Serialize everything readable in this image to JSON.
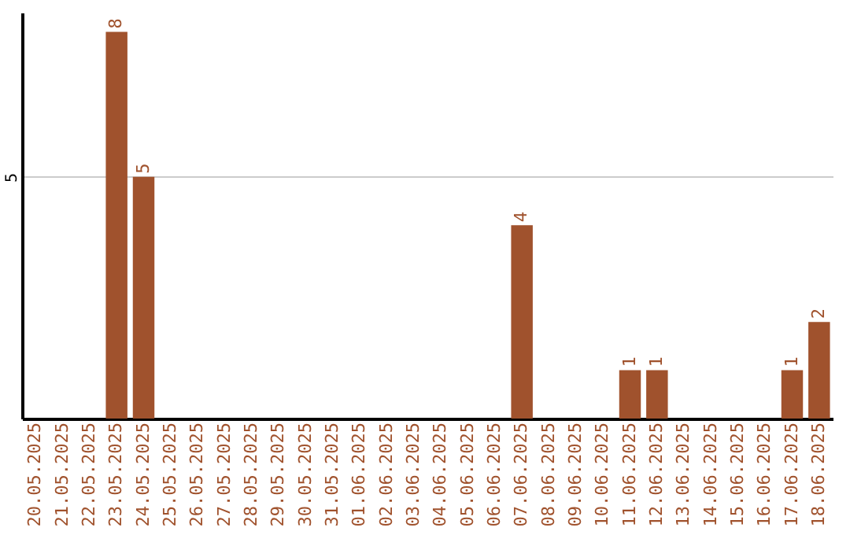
{
  "chart_data": {
    "type": "bar",
    "categories": [
      "20.05.2025",
      "21.05.2025",
      "22.05.2025",
      "23.05.2025",
      "24.05.2025",
      "25.05.2025",
      "26.05.2025",
      "27.05.2025",
      "28.05.2025",
      "29.05.2025",
      "30.05.2025",
      "31.05.2025",
      "01.06.2025",
      "02.06.2025",
      "03.06.2025",
      "04.06.2025",
      "05.06.2025",
      "06.06.2025",
      "07.06.2025",
      "08.06.2025",
      "09.06.2025",
      "10.06.2025",
      "11.06.2025",
      "12.06.2025",
      "13.06.2025",
      "14.06.2025",
      "15.06.2025",
      "16.06.2025",
      "17.06.2025",
      "18.06.2025"
    ],
    "values": [
      0,
      0,
      0,
      8,
      5,
      0,
      0,
      0,
      0,
      0,
      0,
      0,
      0,
      0,
      0,
      0,
      0,
      0,
      4,
      0,
      0,
      0,
      1,
      1,
      0,
      0,
      0,
      0,
      1,
      2
    ],
    "value_labels": [
      null,
      null,
      null,
      "8",
      "5",
      null,
      null,
      null,
      null,
      null,
      null,
      null,
      null,
      null,
      null,
      null,
      null,
      null,
      "4",
      null,
      null,
      null,
      "1",
      "1",
      null,
      null,
      null,
      null,
      "1",
      "2"
    ],
    "color": "#a0522d",
    "ylim": [
      0,
      8.4
    ],
    "yticks": [
      5
    ],
    "grid": "y"
  }
}
